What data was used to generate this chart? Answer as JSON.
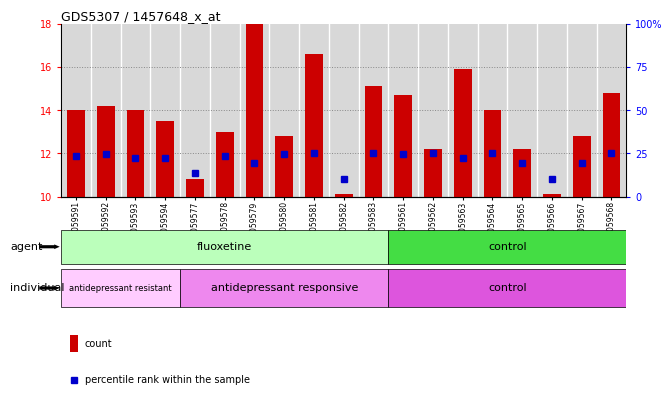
{
  "title": "GDS5307 / 1457648_x_at",
  "samples": [
    "GSM1059591",
    "GSM1059592",
    "GSM1059593",
    "GSM1059594",
    "GSM1059577",
    "GSM1059578",
    "GSM1059579",
    "GSM1059580",
    "GSM1059581",
    "GSM1059582",
    "GSM1059583",
    "GSM1059561",
    "GSM1059562",
    "GSM1059563",
    "GSM1059564",
    "GSM1059565",
    "GSM1059566",
    "GSM1059567",
    "GSM1059568"
  ],
  "bar_tops": [
    14.0,
    14.2,
    14.0,
    13.5,
    10.8,
    13.0,
    18.0,
    12.8,
    16.6,
    10.1,
    15.1,
    14.7,
    12.2,
    15.9,
    14.0,
    12.2,
    10.1,
    12.8,
    14.8
  ],
  "bar_bottoms": [
    10.0,
    10.0,
    10.0,
    10.0,
    10.0,
    10.0,
    10.0,
    10.0,
    10.0,
    10.0,
    10.0,
    10.0,
    10.0,
    10.0,
    10.0,
    10.0,
    10.0,
    10.0,
    10.0
  ],
  "percentile_values": [
    11.9,
    11.95,
    11.8,
    11.8,
    11.1,
    11.9,
    11.55,
    11.95,
    12.0,
    10.8,
    12.0,
    11.95,
    12.0,
    11.8,
    12.0,
    11.55,
    10.8,
    11.55,
    12.0
  ],
  "bar_color": "#cc0000",
  "dot_color": "#0000cc",
  "ylim_left": [
    10,
    18
  ],
  "ylim_right": [
    0,
    100
  ],
  "yticks_left": [
    10,
    12,
    14,
    16,
    18
  ],
  "yticks_right": [
    0,
    25,
    50,
    75,
    100
  ],
  "agent_groups": [
    {
      "label": "fluoxetine",
      "start": 0,
      "end": 10,
      "color": "#bbffbb"
    },
    {
      "label": "control",
      "start": 11,
      "end": 18,
      "color": "#44dd44"
    }
  ],
  "individual_groups": [
    {
      "label": "antidepressant resistant",
      "start": 0,
      "end": 3,
      "color": "#ffccff"
    },
    {
      "label": "antidepressant responsive",
      "start": 4,
      "end": 10,
      "color": "#ee88ee"
    },
    {
      "label": "control",
      "start": 11,
      "end": 18,
      "color": "#dd55dd"
    }
  ],
  "legend_count_color": "#cc0000",
  "legend_dot_color": "#0000cc",
  "plot_bg_color": "#ffffff",
  "sample_bg_color": "#d8d8d8",
  "grid_color": "#888888",
  "agent_label": "agent",
  "individual_label": "individual"
}
